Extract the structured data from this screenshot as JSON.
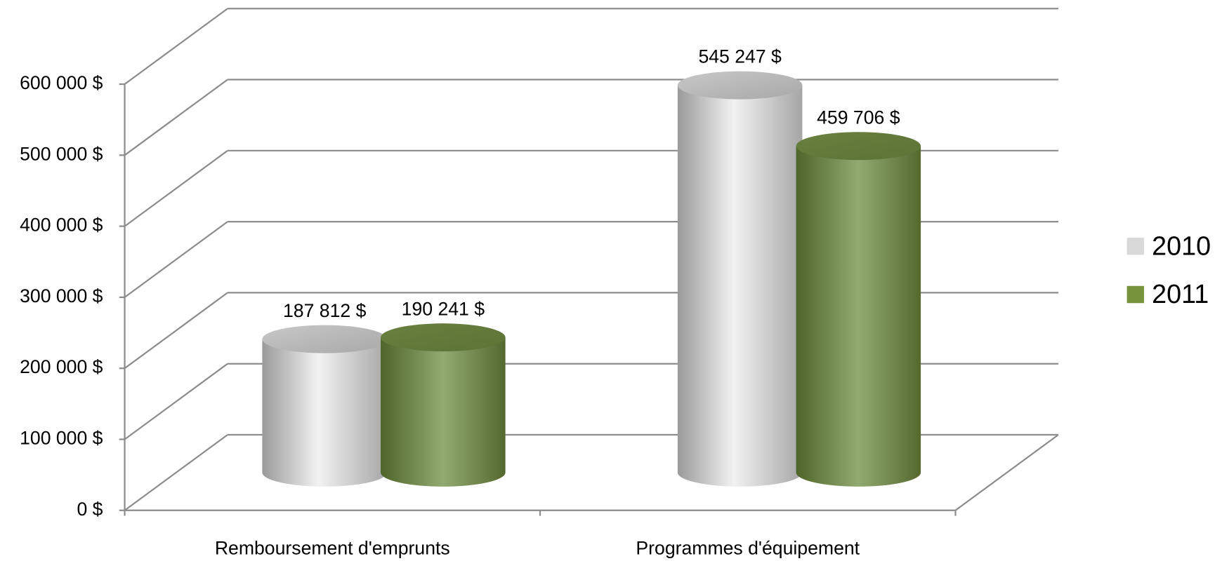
{
  "chart_data": {
    "type": "bar3d-cylinder",
    "categories": [
      "Remboursement d'emprunts",
      "Programmes d'équipement"
    ],
    "series": [
      {
        "name": "2010",
        "color": "#d9d9d9",
        "values": [
          187812,
          545247
        ],
        "value_labels": [
          "187 812 $",
          "545 247 $"
        ]
      },
      {
        "name": "2011",
        "color": "#77933c",
        "values": [
          190241,
          459706
        ],
        "value_labels": [
          "190 241 $",
          "459 706 $"
        ]
      }
    ],
    "ylim": [
      0,
      600000
    ],
    "yticks": [
      {
        "value": 0,
        "label": "0 $"
      },
      {
        "value": 100000,
        "label": "100 000 $"
      },
      {
        "value": 200000,
        "label": "200 000 $"
      },
      {
        "value": 300000,
        "label": "300 000 $"
      },
      {
        "value": 400000,
        "label": "400 000 $"
      },
      {
        "value": 500000,
        "label": "500 000 $"
      },
      {
        "value": 600000,
        "label": "600 000 $"
      }
    ],
    "grid": true,
    "legend": "right"
  }
}
